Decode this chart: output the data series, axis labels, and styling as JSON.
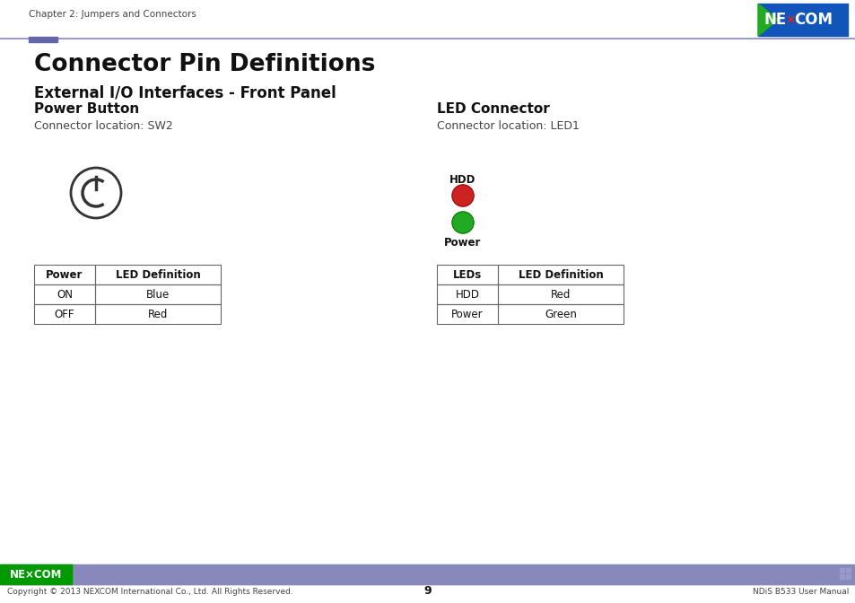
{
  "bg_color": "#ffffff",
  "header_line_color": "#8888bb",
  "header_accent_color": "#6666aa",
  "header_text": "Chapter 2: Jumpers and Connectors",
  "logo_blue": "#1155bb",
  "logo_green": "#22aa22",
  "logo_red": "#dd2222",
  "page_title": "Connector Pin Definitions",
  "section_title": "External I/O Interfaces - Front Panel",
  "left_subtitle": "Power Button",
  "left_connector_loc": "Connector location: SW2",
  "right_subtitle": "LED Connector",
  "right_connector_loc": "Connector location: LED1",
  "left_table_headers": [
    "Power",
    "LED Definition"
  ],
  "left_table_rows": [
    [
      "ON",
      "Blue"
    ],
    [
      "OFF",
      "Red"
    ]
  ],
  "right_table_headers": [
    "LEDs",
    "LED Definition"
  ],
  "right_table_rows": [
    [
      "HDD",
      "Red"
    ],
    [
      "Power",
      "Green"
    ]
  ],
  "hdd_label": "HDD",
  "power_label": "Power",
  "hdd_led_color": "#cc2222",
  "power_led_color": "#22aa22",
  "footer_bar_color": "#8888bb",
  "footer_copyright": "Copyright © 2013 NEXCOM International Co., Ltd. All Rights Reserved.",
  "footer_page": "9",
  "footer_right": "NDiS B533 User Manual",
  "nexcom_footer_green": "#22aa22"
}
